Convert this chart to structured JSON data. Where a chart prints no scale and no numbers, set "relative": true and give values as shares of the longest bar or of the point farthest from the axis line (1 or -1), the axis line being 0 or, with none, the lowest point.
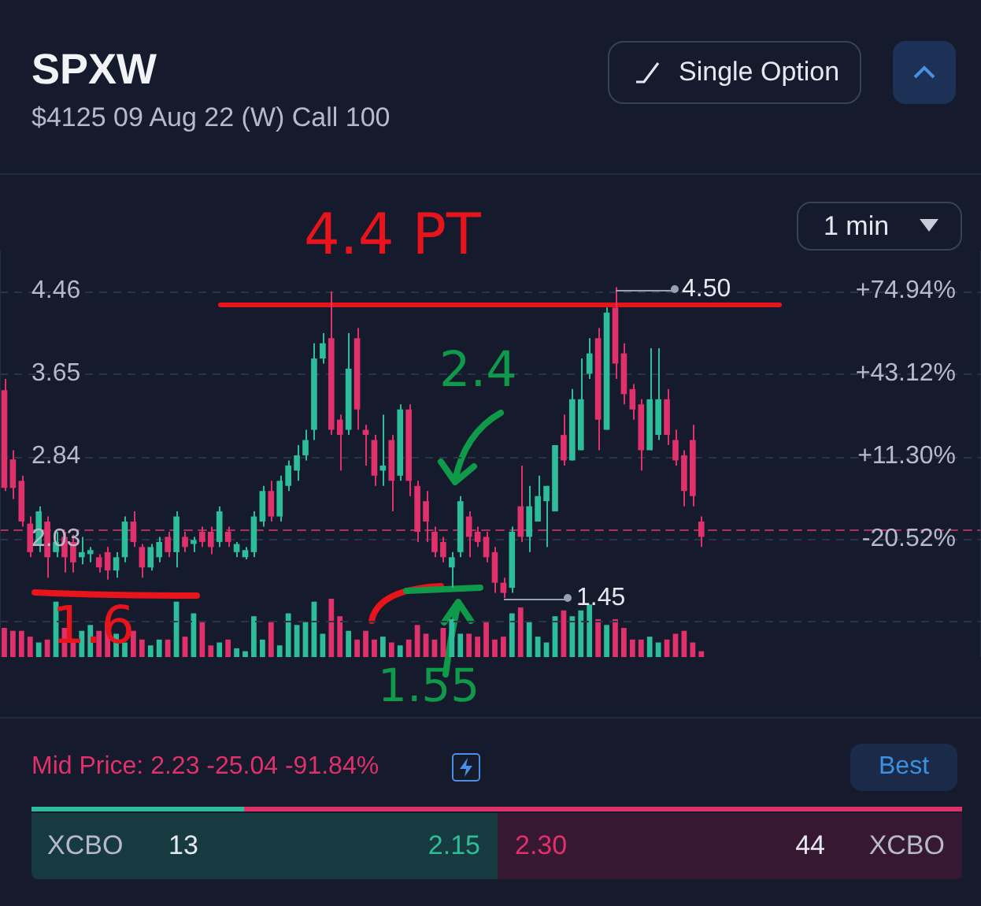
{
  "chart_data": [
    {
      "type": "candlestick",
      "title": "SPXW",
      "subtitle": "$4125 09 Aug 22 (W) Call 100",
      "categories": [
        null,
        null,
        null,
        null,
        null,
        null,
        null,
        null,
        null,
        null,
        null,
        null,
        null,
        null,
        null,
        null,
        null,
        null,
        null,
        null,
        null,
        null,
        null,
        null,
        null,
        null,
        null,
        null,
        null,
        null,
        null,
        null,
        null,
        null,
        null,
        null,
        null,
        null,
        null,
        null,
        null,
        null,
        null,
        null,
        null,
        null,
        null,
        null,
        null,
        null,
        null,
        null,
        null,
        null,
        null,
        null,
        null,
        null,
        null,
        null,
        null,
        null,
        null,
        null,
        null,
        null,
        null,
        null,
        null,
        null,
        null,
        null,
        null,
        null,
        null,
        null,
        null,
        null,
        null,
        null,
        null,
        null,
        null,
        null,
        null,
        null,
        null,
        null,
        null,
        null,
        null,
        null,
        null,
        null,
        null,
        null,
        null,
        null,
        null,
        null,
        null,
        null,
        null,
        null,
        null,
        null,
        null,
        null,
        null,
        null,
        null,
        null,
        null,
        null
      ],
      "ohlc": [
        [
          3.49,
          3.6,
          2.5,
          2.53
        ],
        [
          2.81,
          2.9,
          2.42,
          2.53
        ],
        [
          2.6,
          2.65,
          2.15,
          2.2
        ],
        [
          2.18,
          2.25,
          1.85,
          1.9
        ],
        [
          1.96,
          2.35,
          1.9,
          2.3
        ],
        [
          2.2,
          2.25,
          1.65,
          1.85
        ],
        [
          1.9,
          2.1,
          1.85,
          2.0
        ],
        [
          2.05,
          2.1,
          1.7,
          1.85
        ],
        [
          2.0,
          2.07,
          1.7,
          1.8
        ],
        [
          1.85,
          2.05,
          1.78,
          1.9
        ],
        [
          1.88,
          1.95,
          1.8,
          1.92
        ],
        [
          1.85,
          1.88,
          1.7,
          1.75
        ],
        [
          1.9,
          1.95,
          1.63,
          1.72
        ],
        [
          1.72,
          1.9,
          1.65,
          1.85
        ],
        [
          1.85,
          2.25,
          1.8,
          2.2
        ],
        [
          2.2,
          2.3,
          1.95,
          2.0
        ],
        [
          1.95,
          1.98,
          1.65,
          1.75
        ],
        [
          1.75,
          1.98,
          1.72,
          1.95
        ],
        [
          1.85,
          2.05,
          1.8,
          2.0
        ],
        [
          2.05,
          2.1,
          1.85,
          1.9
        ],
        [
          1.9,
          2.3,
          1.75,
          2.25
        ],
        [
          2.05,
          2.1,
          1.9,
          1.95
        ],
        [
          1.98,
          2.05,
          1.9,
          2.02
        ],
        [
          2.1,
          2.15,
          1.95,
          2.0
        ],
        [
          2.1,
          2.15,
          1.88,
          1.95
        ],
        [
          2.0,
          2.35,
          1.95,
          2.3
        ],
        [
          2.1,
          2.15,
          1.95,
          2.0
        ],
        [
          1.9,
          2.0,
          1.85,
          1.98
        ],
        [
          1.85,
          1.95,
          1.83,
          1.92
        ],
        [
          1.9,
          2.3,
          1.85,
          2.25
        ],
        [
          2.2,
          2.55,
          2.15,
          2.5
        ],
        [
          2.5,
          2.6,
          2.2,
          2.25
        ],
        [
          2.25,
          2.65,
          2.2,
          2.6
        ],
        [
          2.55,
          2.8,
          2.5,
          2.75
        ],
        [
          2.7,
          2.95,
          2.6,
          2.85
        ],
        [
          2.85,
          3.1,
          2.8,
          3.0
        ],
        [
          3.1,
          3.95,
          3.0,
          3.8
        ],
        [
          3.8,
          4.05,
          3.75,
          3.95
        ],
        [
          4.0,
          4.46,
          3.05,
          3.1
        ],
        [
          3.2,
          3.25,
          2.7,
          3.05
        ],
        [
          3.1,
          4.05,
          3.05,
          3.7
        ],
        [
          4.0,
          4.1,
          3.1,
          3.3
        ],
        [
          3.1,
          3.15,
          2.75,
          3.05
        ],
        [
          3.0,
          3.05,
          2.55,
          2.65
        ],
        [
          2.7,
          3.25,
          2.55,
          2.75
        ],
        [
          3.0,
          3.05,
          2.3,
          2.6
        ],
        [
          2.65,
          3.35,
          2.6,
          3.3
        ],
        [
          3.3,
          3.35,
          2.45,
          2.6
        ],
        [
          2.55,
          2.6,
          2.0,
          2.1
        ],
        [
          2.4,
          2.5,
          2.0,
          2.2
        ],
        [
          2.1,
          2.15,
          1.85,
          1.9
        ],
        [
          2.0,
          2.05,
          1.8,
          1.85
        ],
        [
          1.75,
          1.9,
          1.55,
          1.85
        ],
        [
          1.9,
          2.45,
          1.85,
          2.4
        ],
        [
          2.25,
          2.3,
          1.85,
          2.05
        ],
        [
          2.1,
          2.15,
          1.95,
          2.0
        ],
        [
          2.05,
          2.1,
          1.8,
          1.85
        ],
        [
          1.9,
          1.95,
          1.5,
          1.6
        ],
        [
          1.6,
          1.65,
          1.45,
          1.5
        ],
        [
          1.55,
          2.15,
          1.5,
          2.1
        ],
        [
          2.35,
          2.75,
          2.0,
          2.05
        ],
        [
          2.05,
          2.55,
          1.9,
          2.35
        ],
        [
          2.2,
          2.65,
          2.2,
          2.45
        ],
        [
          2.4,
          2.55,
          1.95,
          2.55
        ],
        [
          2.3,
          2.95,
          2.3,
          2.95
        ],
        [
          3.05,
          3.25,
          2.75,
          2.8
        ],
        [
          2.8,
          3.5,
          2.8,
          3.4
        ],
        [
          2.9,
          3.8,
          2.9,
          3.4
        ],
        [
          3.65,
          4.0,
          3.6,
          3.85
        ],
        [
          4.0,
          4.1,
          2.9,
          3.2
        ],
        [
          3.1,
          4.3,
          3.1,
          4.25
        ],
        [
          4.3,
          4.5,
          3.6,
          3.75
        ],
        [
          3.85,
          3.95,
          3.35,
          3.45
        ],
        [
          3.5,
          3.55,
          3.2,
          3.3
        ],
        [
          3.35,
          3.4,
          2.7,
          2.9
        ],
        [
          2.9,
          3.9,
          2.9,
          3.4
        ],
        [
          3.05,
          3.9,
          3.0,
          3.4
        ],
        [
          3.4,
          3.5,
          2.95,
          3.05
        ],
        [
          3.0,
          3.1,
          2.75,
          2.8
        ],
        [
          2.85,
          2.9,
          2.35,
          2.5
        ],
        [
          3.0,
          3.15,
          2.35,
          2.45
        ],
        [
          2.2,
          2.25,
          1.95,
          2.05
        ],
        null,
        null,
        null,
        null,
        null,
        null,
        null,
        null,
        null,
        null,
        null,
        null,
        null,
        null,
        null,
        null,
        null,
        null,
        null,
        null,
        null,
        null,
        null,
        null,
        null,
        null,
        null,
        null,
        null,
        null,
        null,
        null
      ],
      "colors": [
        "#e0316b",
        "#e0316b",
        "#e0316b",
        "#e0316b",
        "#2ebd9a",
        "#e0316b",
        "#2ebd9a",
        "#e0316b",
        "#e0316b",
        "#2ebd9a",
        "#2ebd9a",
        "#e0316b",
        "#e0316b",
        "#2ebd9a",
        "#2ebd9a",
        "#e0316b",
        "#e0316b",
        "#2ebd9a",
        "#2ebd9a",
        "#e0316b",
        "#2ebd9a",
        "#e0316b",
        "#2ebd9a",
        "#e0316b",
        "#e0316b",
        "#2ebd9a",
        "#e0316b",
        "#2ebd9a",
        "#2ebd9a",
        "#2ebd9a",
        "#2ebd9a",
        "#e0316b",
        "#2ebd9a",
        "#2ebd9a",
        "#2ebd9a",
        "#2ebd9a",
        "#2ebd9a",
        "#2ebd9a",
        "#e0316b",
        "#e0316b",
        "#2ebd9a",
        "#e0316b",
        "#e0316b",
        "#e0316b",
        "#2ebd9a",
        "#e0316b",
        "#2ebd9a",
        "#e0316b",
        "#e0316b",
        "#e0316b",
        "#e0316b",
        "#e0316b",
        "#2ebd9a",
        "#2ebd9a",
        "#e0316b",
        "#e0316b",
        "#e0316b",
        "#e0316b",
        "#e0316b",
        "#2ebd9a",
        "#e0316b",
        "#2ebd9a",
        "#2ebd9a",
        "#2ebd9a",
        "#2ebd9a",
        "#e0316b",
        "#2ebd9a",
        "#2ebd9a",
        "#2ebd9a",
        "#e0316b",
        "#2ebd9a",
        "#e0316b",
        "#e0316b",
        "#e0316b",
        "#e0316b",
        "#2ebd9a",
        "#2ebd9a",
        "#e0316b",
        "#e0316b",
        "#e0316b",
        "#e0316b",
        "#e0316b",
        null,
        null,
        null,
        null,
        null,
        null,
        null,
        null,
        null,
        null,
        null,
        null,
        null,
        null,
        null,
        null,
        null,
        null,
        null,
        null,
        null,
        null,
        null,
        null,
        null,
        null,
        null,
        null,
        null,
        null,
        null,
        null
      ],
      "ylim": [
        0.88,
        4.85
      ],
      "yticks": [
        4.46,
        3.65,
        2.84,
        2.03,
        {
          "value": 1.22,
          "label": null
        }
      ],
      "y2lim": [
        -65.7,
        90.26
      ],
      "y2ticks": [
        {
          "value": 74.94,
          "label": "+74.94%"
        },
        {
          "value": 43.12,
          "label": "+43.12%"
        },
        {
          "value": 11.3,
          "label": "+11.30%"
        },
        {
          "value": -20.52,
          "label": "-20.52%"
        }
      ],
      "grid": "y",
      "tick_labels": "y",
      "legend": false,
      "ref_lines": [
        {
          "axis": "y",
          "value": 2.12,
          "color": "#a8335f",
          "line_style": "dashed"
        },
        {
          "axis": "y",
          "value": 4.34,
          "color": "#e8141c",
          "line_style": "solid"
        }
      ],
      "annotations": [
        "Single Option",
        "1 min",
        "4.4 PT",
        "2.4",
        "1.6",
        "1.55",
        "Mid Price: 2.23 -25.04 -91.84%",
        "Best",
        "XCBO",
        "13",
        "2.15",
        "2.30",
        "44",
        "XCBO",
        "4.50",
        "1.45"
      ]
    },
    {
      "type": "bar",
      "relative": true,
      "tick_labels": false,
      "legend": false,
      "categories": [
        null,
        null,
        null,
        null,
        null,
        null,
        null,
        null,
        null,
        null,
        null,
        null,
        null,
        null,
        null,
        null,
        null,
        null,
        null,
        null,
        null,
        null,
        null,
        null,
        null,
        null,
        null,
        null,
        null,
        null,
        null,
        null,
        null,
        null,
        null,
        null,
        null,
        null,
        null,
        null,
        null,
        null,
        null,
        null,
        null,
        null,
        null,
        null,
        null,
        null,
        null,
        null,
        null,
        null,
        null,
        null,
        null,
        null,
        null,
        null,
        null,
        null,
        null,
        null,
        null,
        null,
        null,
        null,
        null,
        null,
        null,
        null,
        null,
        null,
        null,
        null,
        null,
        null,
        null,
        null,
        null,
        null,
        null,
        null,
        null,
        null,
        null,
        null,
        null,
        null,
        null,
        null,
        null,
        null,
        null,
        null,
        null,
        null,
        null,
        null,
        null,
        null,
        null,
        null,
        null,
        null,
        null,
        null,
        null,
        null,
        null,
        null,
        null,
        null
      ],
      "values": [
        0.5,
        0.45,
        0.45,
        0.35,
        0.25,
        0.3,
        0.95,
        0.5,
        0.3,
        0.45,
        0.55,
        0.45,
        0.6,
        0.4,
        0.25,
        0.45,
        0.3,
        0.2,
        0.3,
        0.3,
        0.95,
        0.35,
        0.75,
        0.6,
        0.2,
        0.25,
        0.3,
        0.15,
        0.1,
        0.7,
        0.3,
        0.6,
        0.2,
        0.75,
        0.55,
        0.6,
        0.95,
        0.4,
        1,
        0.7,
        0.45,
        0.3,
        0.45,
        0.3,
        0.35,
        0.25,
        0.2,
        0.3,
        0.55,
        0.4,
        0.3,
        0.5,
        0.65,
        0.4,
        0.4,
        0.35,
        0.6,
        0.3,
        0.35,
        0.75,
        0.85,
        0.6,
        0.35,
        0.25,
        0.7,
        0.8,
        0.7,
        0.8,
        0.9,
        0.65,
        0.55,
        0.65,
        0.5,
        0.3,
        0.3,
        0.35,
        0.25,
        0.3,
        0.4,
        0.45,
        0.25,
        0.1,
        null,
        null,
        null,
        null,
        null,
        null,
        null,
        null,
        null,
        null,
        null,
        null,
        null,
        null,
        null,
        null,
        null,
        null,
        null,
        null,
        null,
        null,
        null,
        null,
        null,
        null,
        null,
        null,
        null,
        null,
        null,
        null
      ],
      "colors": [
        "#e0316b",
        "#e0316b",
        "#e0316b",
        "#e0316b",
        "#2ebd9a",
        "#e0316b",
        "#2ebd9a",
        "#e0316b",
        "#e0316b",
        "#2ebd9a",
        "#2ebd9a",
        "#e0316b",
        "#e0316b",
        "#2ebd9a",
        "#2ebd9a",
        "#e0316b",
        "#e0316b",
        "#2ebd9a",
        "#2ebd9a",
        "#e0316b",
        "#2ebd9a",
        "#e0316b",
        "#2ebd9a",
        "#e0316b",
        "#e0316b",
        "#2ebd9a",
        "#e0316b",
        "#2ebd9a",
        "#2ebd9a",
        "#2ebd9a",
        "#2ebd9a",
        "#e0316b",
        "#2ebd9a",
        "#2ebd9a",
        "#2ebd9a",
        "#2ebd9a",
        "#2ebd9a",
        "#2ebd9a",
        "#e0316b",
        "#e0316b",
        "#2ebd9a",
        "#e0316b",
        "#e0316b",
        "#e0316b",
        "#2ebd9a",
        "#e0316b",
        "#2ebd9a",
        "#e0316b",
        "#e0316b",
        "#e0316b",
        "#e0316b",
        "#e0316b",
        "#2ebd9a",
        "#2ebd9a",
        "#e0316b",
        "#e0316b",
        "#e0316b",
        "#e0316b",
        "#e0316b",
        "#2ebd9a",
        "#e0316b",
        "#2ebd9a",
        "#2ebd9a",
        "#2ebd9a",
        "#2ebd9a",
        "#e0316b",
        "#2ebd9a",
        "#2ebd9a",
        "#2ebd9a",
        "#e0316b",
        "#2ebd9a",
        "#e0316b",
        "#e0316b",
        "#e0316b",
        "#e0316b",
        "#2ebd9a",
        "#2ebd9a",
        "#e0316b",
        "#e0316b",
        "#e0316b",
        "#e0316b",
        "#e0316b",
        null,
        null,
        null,
        null,
        null,
        null,
        null,
        null,
        null,
        null,
        null,
        null,
        null,
        null,
        null,
        null,
        null,
        null,
        null,
        null,
        null,
        null,
        null,
        null,
        null,
        null,
        null,
        null,
        null,
        null,
        null,
        null
      ]
    }
  ]
}
